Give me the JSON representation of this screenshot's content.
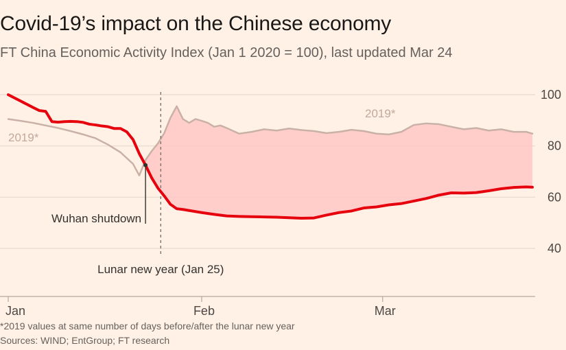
{
  "chart_data": {
    "type": "area",
    "title": "Covid-19’s impact on the Chinese economy",
    "subtitle": "FT China Economic Activity Index (Jan 1 2020 = 100), last updated Mar 24",
    "x_ticks": [
      {
        "label": "Jan",
        "day": 1
      },
      {
        "label": "Feb",
        "day": 32
      },
      {
        "label": "Mar",
        "day": 61
      }
    ],
    "y_ticks": [
      100,
      80,
      60,
      40
    ],
    "ylim": [
      30,
      100
    ],
    "x_range_day_of_year": [
      1,
      85
    ],
    "shaded_area": "between series",
    "series": [
      {
        "name": "2020",
        "color": "#e6000d",
        "x_day_of_year": [
          1,
          3,
          5,
          6,
          7,
          8,
          9,
          10,
          11,
          12,
          13,
          14,
          15,
          16,
          17,
          18,
          19,
          20,
          21,
          22,
          23,
          24,
          25,
          26,
          27,
          28,
          29,
          30,
          32,
          34,
          36,
          38,
          40,
          42,
          44,
          46,
          48,
          50,
          52,
          54,
          56,
          58,
          60,
          62,
          64,
          66,
          68,
          70,
          72,
          74,
          76,
          78,
          80,
          82,
          84,
          85
        ],
        "values": [
          100,
          97.5,
          95,
          93.8,
          93.5,
          89.5,
          89.3,
          89.5,
          89.6,
          89.5,
          89.2,
          88.5,
          88.2,
          87.8,
          87.5,
          86.8,
          86.8,
          85.5,
          82.5,
          77,
          72.5,
          67.5,
          63.5,
          60.5,
          57.2,
          55.5,
          55.2,
          54.8,
          54,
          53.3,
          52.7,
          52.5,
          52.4,
          52.3,
          52.2,
          52,
          51.8,
          51.9,
          53,
          54,
          54.6,
          55.8,
          56.2,
          57,
          57.5,
          58.5,
          59.5,
          60.8,
          61.7,
          61.6,
          61.8,
          62.5,
          63.3,
          63.8,
          64,
          63.9
        ]
      },
      {
        "name": "2019",
        "label": "2019*",
        "color": "#c9b1a7",
        "x_day_of_year": [
          1,
          3,
          5,
          7,
          9,
          11,
          13,
          15,
          17,
          19,
          21,
          22,
          23,
          24,
          25,
          26,
          27,
          28,
          29,
          30,
          31,
          32,
          33,
          34,
          35,
          36,
          38,
          40,
          42,
          44,
          46,
          48,
          50,
          52,
          54,
          56,
          58,
          60,
          62,
          64,
          66,
          68,
          70,
          72,
          74,
          76,
          78,
          80,
          82,
          84,
          85
        ],
        "values": [
          90.5,
          89.8,
          89,
          88,
          87,
          85.8,
          84.5,
          83,
          80.5,
          77.5,
          73,
          68.5,
          74.5,
          78,
          81,
          85,
          91,
          95.5,
          90.5,
          89,
          90.5,
          89.8,
          89,
          87.5,
          88,
          87,
          84.8,
          85.5,
          86.5,
          86,
          86.8,
          86.2,
          85.8,
          85,
          85.5,
          86.3,
          85.8,
          84.8,
          84.5,
          85.5,
          88.2,
          88.8,
          88.5,
          87.5,
          86.5,
          87,
          86,
          86.5,
          85.5,
          85.5,
          84.8
        ]
      }
    ],
    "annotations": {
      "wuhan": {
        "text": "Wuhan shutdown",
        "day": 23
      },
      "lunar": {
        "text": "Lunar new year (Jan 25)",
        "day": 25
      },
      "label_2019_left": "2019*",
      "label_2019_right": "2019*"
    }
  },
  "footnotes": [
    "*2019 values at same number of days before/after the lunar new year",
    "Sources: WIND; EntGroup; FT research"
  ]
}
